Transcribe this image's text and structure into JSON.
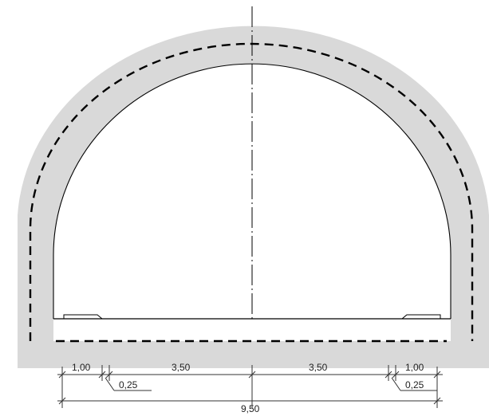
{
  "diagram": {
    "colors": {
      "lining_fill": "#d9d9d9",
      "line": "#000000",
      "dim_line": "#333333"
    },
    "dimensions": {
      "left_shoulder": "1,00",
      "left_lane": "3,50",
      "right_lane": "3,50",
      "right_shoulder": "1,00",
      "left_curb": "0,25",
      "right_curb": "0,25",
      "total_width": "9,50"
    }
  }
}
